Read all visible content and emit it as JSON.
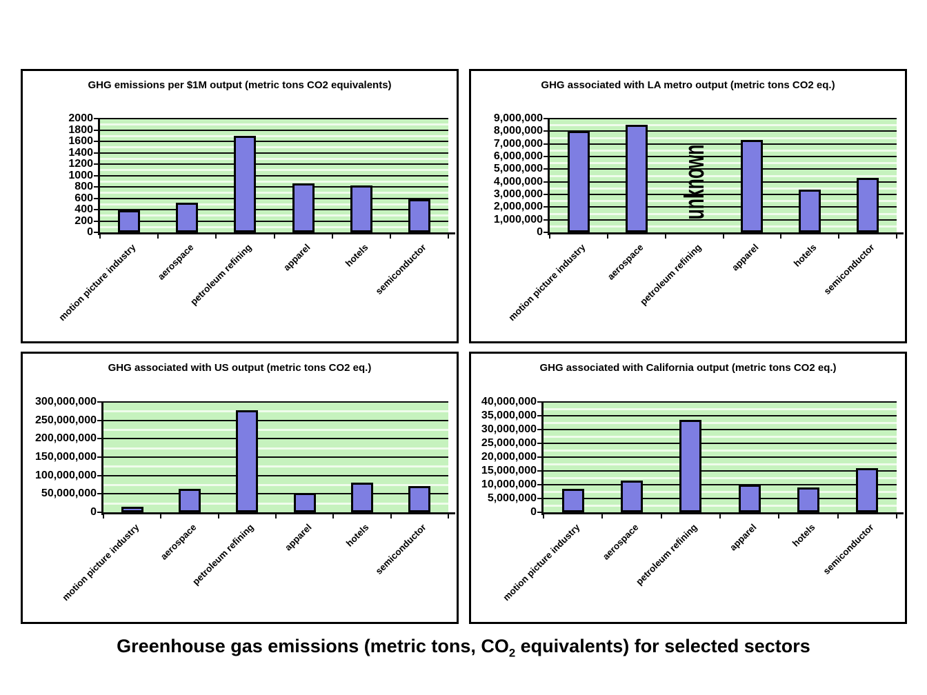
{
  "caption": {
    "prefix": "Greenhouse gas emissions (metric tons, CO",
    "sub": "2",
    "suffix": " equivalents) for selected sectors"
  },
  "colors": {
    "bar_fill": "#7e7ee2",
    "bar_border": "#000000",
    "plot_bg": "#c6f2be",
    "plot_stripe": "#f0fcec",
    "grid": "#0a0a0a",
    "panel_border": "#000000",
    "text": "#000000"
  },
  "chart_data": [
    {
      "type": "bar",
      "title": "GHG emissions per $1M output (metric tons CO2 equivalents)",
      "categories": [
        "motion picture industry",
        "aerospace",
        "petroleum refining",
        "apparel",
        "hotels",
        "semiconductor"
      ],
      "values": [
        390,
        520,
        1700,
        860,
        830,
        580
      ],
      "xlabel": "",
      "ylabel": "",
      "ylim": [
        0,
        2000
      ],
      "ytick_step": 200,
      "ytick_labels": [
        "0",
        "200",
        "400",
        "600",
        "800",
        "1000",
        "1200",
        "1400",
        "1600",
        "1800",
        "2000"
      ],
      "grid": true,
      "legend": false,
      "annotations": []
    },
    {
      "type": "bar",
      "title": "GHG associated with LA metro output (metric tons CO2 eq.)",
      "categories": [
        "motion picture industry",
        "aerospace",
        "petroleum refining",
        "apparel",
        "hotels",
        "semiconductor"
      ],
      "values": [
        8000000,
        8500000,
        null,
        7300000,
        3400000,
        4300000
      ],
      "xlabel": "",
      "ylabel": "",
      "ylim": [
        0,
        9000000
      ],
      "ytick_step": 1000000,
      "ytick_labels": [
        "0",
        "1,000,000",
        "2,000,000",
        "3,000,000",
        "4,000,000",
        "5,000,000",
        "6,000,000",
        "7,000,000",
        "8,000,000",
        "9,000,000"
      ],
      "grid": true,
      "legend": false,
      "annotations": [
        {
          "text": "unknown",
          "category_index": 2
        }
      ]
    },
    {
      "type": "bar",
      "title": "GHG associated with US output (metric tons CO2 eq.)",
      "categories": [
        "motion picture industry",
        "aerospace",
        "petroleum refining",
        "apparel",
        "hotels",
        "semiconductor"
      ],
      "values": [
        15000000,
        63000000,
        278000000,
        52000000,
        80000000,
        72000000
      ],
      "xlabel": "",
      "ylabel": "",
      "ylim": [
        0,
        300000000
      ],
      "ytick_step": 50000000,
      "ytick_labels": [
        "0",
        "50,000,000",
        "100,000,000",
        "150,000,000",
        "200,000,000",
        "250,000,000",
        "300,000,000"
      ],
      "grid": true,
      "legend": false,
      "annotations": []
    },
    {
      "type": "bar",
      "title": "GHG associated with California output (metric tons CO2 eq.)",
      "categories": [
        "motion picture industry",
        "aerospace",
        "petroleum refining",
        "apparel",
        "hotels",
        "semiconductor"
      ],
      "values": [
        8500000,
        11500000,
        33500000,
        10000000,
        9000000,
        16000000
      ],
      "xlabel": "",
      "ylabel": "",
      "ylim": [
        0,
        40000000
      ],
      "ytick_step": 5000000,
      "ytick_labels": [
        "0",
        "5,000,000",
        "10,000,000",
        "15,000,000",
        "20,000,000",
        "25,000,000",
        "30,000,000",
        "35,000,000",
        "40,000,000"
      ],
      "grid": true,
      "legend": false,
      "annotations": []
    }
  ]
}
